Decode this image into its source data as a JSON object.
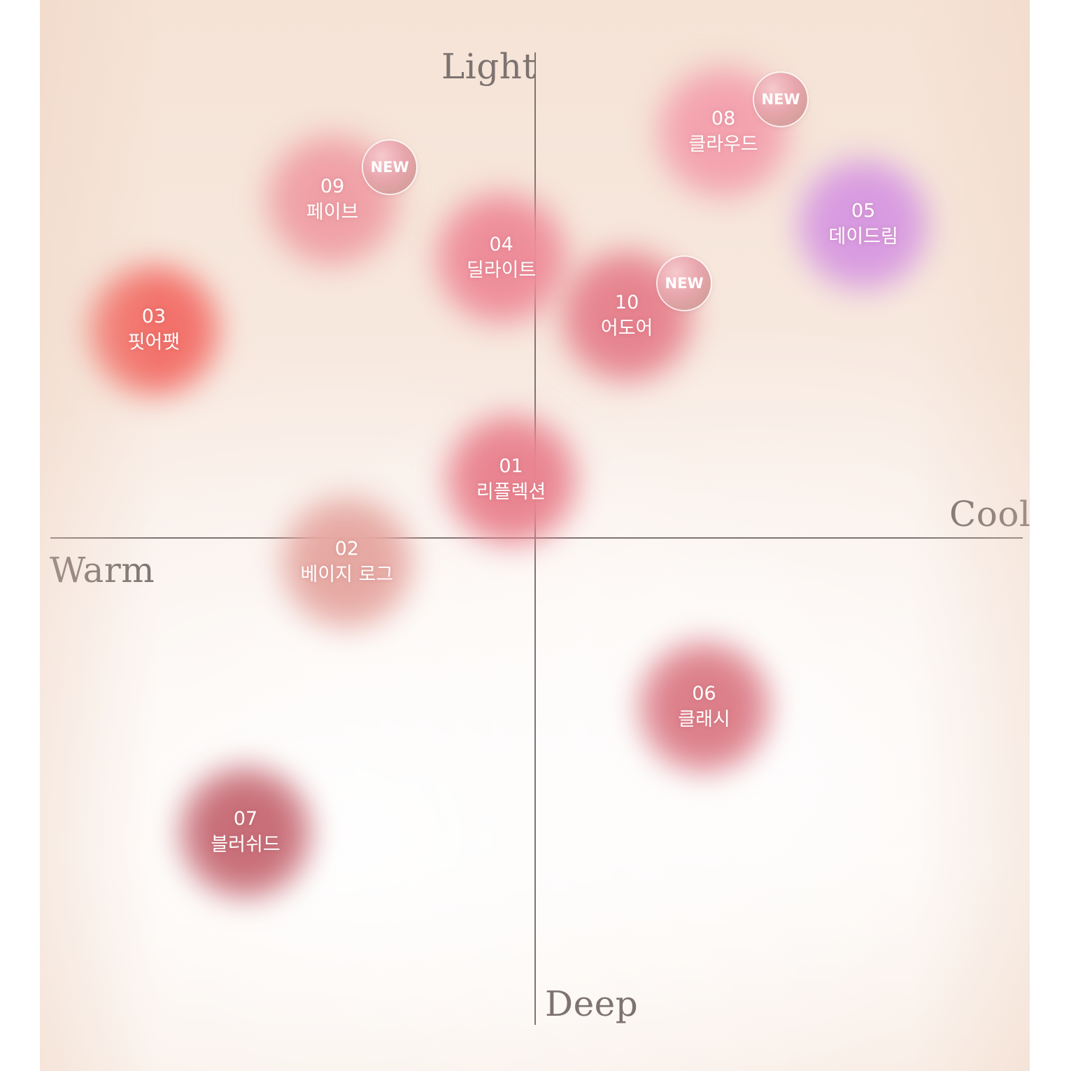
{
  "chart_data": {
    "type": "scatter",
    "axes": {
      "top_label": "Light",
      "bottom_label": "Deep",
      "left_label": "Warm",
      "right_label": "Cool"
    },
    "x_axis": {
      "min": -1,
      "max": 1,
      "negative": "Warm",
      "positive": "Cool"
    },
    "y_axis": {
      "min": -1,
      "max": 1,
      "negative": "Deep",
      "positive": "Light"
    },
    "grid": false,
    "points": [
      {
        "number": "01",
        "name": "리플렉션",
        "x": -0.05,
        "y": 0.12,
        "color": "#e98490",
        "new": false,
        "badge": ""
      },
      {
        "number": "02",
        "name": "베이지 로그",
        "x": -0.39,
        "y": -0.05,
        "color": "#e6a8a2",
        "new": false,
        "badge": ""
      },
      {
        "number": "03",
        "name": "핏어팻",
        "x": -0.79,
        "y": 0.43,
        "color": "#f2716a",
        "new": false,
        "badge": ""
      },
      {
        "number": "04",
        "name": "딜라이트",
        "x": -0.07,
        "y": 0.58,
        "color": "#ee8d9a",
        "new": false,
        "badge": ""
      },
      {
        "number": "05",
        "name": "데이드림",
        "x": 0.68,
        "y": 0.65,
        "color": "#d79ae0",
        "new": false,
        "badge": ""
      },
      {
        "number": "06",
        "name": "클래시",
        "x": 0.35,
        "y": -0.35,
        "color": "#dc7f8a",
        "new": false,
        "badge": ""
      },
      {
        "number": "07",
        "name": "블러쉬드",
        "x": -0.6,
        "y": -0.61,
        "color": "#c86e78",
        "new": false,
        "badge": ""
      },
      {
        "number": "08",
        "name": "클라우드",
        "x": 0.39,
        "y": 0.84,
        "color": "#f3a2ae",
        "new": true,
        "badge": "NEW"
      },
      {
        "number": "09",
        "name": "페이브",
        "x": -0.42,
        "y": 0.7,
        "color": "#efa0a6",
        "new": true,
        "badge": "NEW"
      },
      {
        "number": "10",
        "name": "어도어",
        "x": 0.19,
        "y": 0.46,
        "color": "#e6838f",
        "new": true,
        "badge": "NEW"
      }
    ]
  }
}
